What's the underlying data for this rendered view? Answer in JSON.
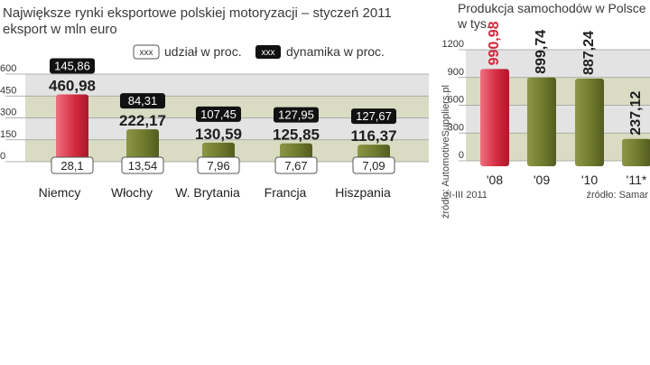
{
  "colors": {
    "bar_green": "#6f7a2e",
    "bar_green_light": "#8c9646",
    "bar_red": "#d1283c",
    "bar_red_light": "#f07080",
    "band_gray": "#e3e3e3",
    "band_olive": "#d9dcc2",
    "text": "#2b2b2b",
    "red_label": "#d1283c"
  },
  "chart_data": [
    {
      "type": "bar",
      "title": "Największe rynki eksportowe polskiej motoryzacji – styczeń 2011",
      "subtitle": "eksport w mln euro",
      "legend": {
        "share_box": "xxx",
        "share_label": "udział w proc.",
        "dynamics_box": "xxx",
        "dynamics_label": "dynamika w proc."
      },
      "categories": [
        "Niemcy",
        "Włochy",
        "W. Brytania",
        "Francja",
        "Hiszpania"
      ],
      "values": [
        460.98,
        222.17,
        130.59,
        125.85,
        116.37
      ],
      "value_labels": [
        "460,98",
        "222,17",
        "130,59",
        "125,85",
        "116,37"
      ],
      "share_labels": [
        "28,1",
        "13,54",
        "7,96",
        "7,67",
        "7,09"
      ],
      "dynamics_labels": [
        "145,86",
        "84,31",
        "107,45",
        "127,95",
        "127,67"
      ],
      "highlight_index": 0,
      "ylim": [
        0,
        600
      ],
      "yticks": [
        "0",
        "150",
        "300",
        "450",
        "600"
      ],
      "ytick_values": [
        0,
        150,
        300,
        450,
        600
      ]
    },
    {
      "type": "bar",
      "title": "Produkcja samochodów w Polsce",
      "subtitle": "w tys.",
      "categories": [
        "'08",
        "'09",
        "'10",
        "'11*"
      ],
      "values": [
        990.98,
        899.74,
        887.24,
        237.12
      ],
      "value_labels": [
        "990,98",
        "899,74",
        "887,24",
        "237,12"
      ],
      "highlight_index": 0,
      "ylim": [
        0,
        1200
      ],
      "yticks": [
        "0",
        "300",
        "600",
        "900",
        "1200"
      ],
      "ytick_values": [
        0,
        300,
        600,
        900,
        1200
      ]
    }
  ],
  "footnotes": {
    "source_vertical": "źródło: AutomotiveSuppliers.pl",
    "period_note": "*I-III 2011",
    "source_right": "źródło: Samar"
  }
}
